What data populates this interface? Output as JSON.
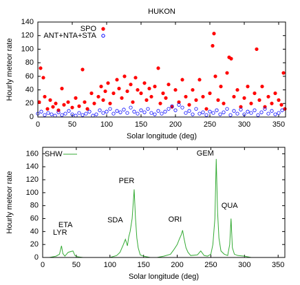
{
  "chart_data": [
    {
      "type": "scatter",
      "title": "HUKON",
      "x_label": "Solar longitude (deg)",
      "y_label": "Hourly meteor rate",
      "xlim": [
        0,
        360
      ],
      "ylim": [
        0,
        140
      ],
      "xticks": [
        0,
        50,
        100,
        150,
        200,
        250,
        300,
        350
      ],
      "yticks": [
        0,
        20,
        40,
        60,
        80,
        100,
        120,
        140
      ],
      "series": [
        {
          "name": "SPO",
          "color": "#ff0000",
          "marker": "filled",
          "x": [
            2,
            4,
            8,
            10,
            14,
            18,
            22,
            26,
            30,
            35,
            38,
            44,
            50,
            55,
            60,
            65,
            68,
            72,
            78,
            82,
            88,
            92,
            95,
            98,
            102,
            105,
            110,
            115,
            118,
            122,
            126,
            130,
            135,
            138,
            142,
            145,
            150,
            155,
            158,
            162,
            165,
            170,
            175,
            178,
            182,
            186,
            190,
            195,
            200,
            205,
            210,
            215,
            220,
            225,
            230,
            235,
            240,
            245,
            250,
            254,
            256,
            258,
            262,
            266,
            270,
            275,
            278,
            281,
            285,
            290,
            295,
            300,
            305,
            310,
            315,
            318,
            322,
            326,
            330,
            335,
            340,
            345,
            350,
            354,
            357,
            359
          ],
          "values": [
            22,
            72,
            58,
            30,
            12,
            25,
            15,
            20,
            10,
            42,
            18,
            22,
            14,
            28,
            16,
            70,
            22,
            12,
            35,
            20,
            30,
            45,
            25,
            38,
            50,
            20,
            35,
            55,
            42,
            28,
            60,
            38,
            48,
            22,
            58,
            40,
            35,
            50,
            25,
            42,
            30,
            45,
            72,
            20,
            35,
            28,
            48,
            15,
            40,
            22,
            55,
            30,
            18,
            40,
            25,
            55,
            30,
            12,
            35,
            105,
            123,
            60,
            25,
            45,
            20,
            65,
            88,
            86,
            30,
            40,
            15,
            28,
            45,
            20,
            35,
            100,
            25,
            45,
            15,
            30,
            20,
            35,
            25,
            18,
            65,
            12
          ]
        },
        {
          "name": "ANT+NTA+STA",
          "color": "#0000ff",
          "marker": "open",
          "x": [
            0,
            5,
            10,
            15,
            20,
            25,
            30,
            35,
            40,
            45,
            50,
            55,
            60,
            65,
            70,
            75,
            80,
            85,
            90,
            95,
            100,
            105,
            110,
            115,
            120,
            125,
            130,
            135,
            140,
            145,
            150,
            155,
            160,
            165,
            170,
            175,
            180,
            185,
            190,
            195,
            200,
            205,
            210,
            215,
            220,
            225,
            230,
            235,
            240,
            245,
            250,
            255,
            260,
            265,
            270,
            275,
            280,
            285,
            290,
            295,
            300,
            305,
            310,
            315,
            320,
            325,
            330,
            335,
            340,
            345,
            350,
            355
          ],
          "values": [
            5,
            8,
            3,
            6,
            4,
            2,
            7,
            3,
            5,
            9,
            4,
            2,
            6,
            3,
            5,
            8,
            2,
            4,
            10,
            6,
            8,
            12,
            5,
            9,
            7,
            11,
            6,
            14,
            8,
            5,
            10,
            7,
            12,
            6,
            4,
            9,
            5,
            8,
            12,
            16,
            10,
            18,
            14,
            6,
            9,
            4,
            12,
            5,
            7,
            3,
            8,
            6,
            10,
            4,
            7,
            12,
            3,
            9,
            5,
            11,
            4,
            8,
            6,
            10,
            3,
            7,
            12,
            5,
            9,
            4,
            6,
            10
          ]
        }
      ]
    },
    {
      "type": "line",
      "x_label": "Solar longitude (deg)",
      "y_label": "Hourly meteor rate",
      "xlim": [
        0,
        360
      ],
      "ylim": [
        0,
        170
      ],
      "xticks": [
        0,
        50,
        100,
        150,
        200,
        250,
        300,
        350
      ],
      "yticks": [
        0,
        20,
        40,
        60,
        80,
        100,
        120,
        140,
        160
      ],
      "annotations": [
        "LYR",
        "ETA",
        "SDA",
        "PER",
        "ORI",
        "GEM",
        "QUA"
      ],
      "series": [
        {
          "name": "SHW",
          "color": "#33aa33",
          "x": [
            0,
            10,
            20,
            25,
            28,
            30,
            33,
            38,
            45,
            48,
            52,
            60,
            70,
            80,
            90,
            100,
            110,
            115,
            120,
            123,
            126,
            128,
            130,
            133,
            136,
            138,
            140,
            142,
            145,
            150,
            160,
            170,
            180,
            190,
            195,
            200,
            203,
            206,
            208,
            210,
            213,
            216,
            220,
            230,
            235,
            240,
            245,
            250,
            253,
            256,
            258,
            260,
            262,
            265,
            270,
            275,
            278,
            280,
            282,
            285,
            290,
            300,
            310
          ],
          "values": [
            0,
            0,
            2,
            5,
            18,
            6,
            2,
            8,
            10,
            3,
            1,
            0,
            0,
            0,
            0,
            0,
            3,
            8,
            20,
            28,
            18,
            32,
            40,
            60,
            105,
            60,
            30,
            15,
            4,
            2,
            0,
            0,
            2,
            5,
            12,
            20,
            28,
            35,
            42,
            30,
            15,
            8,
            3,
            4,
            10,
            3,
            2,
            5,
            20,
            60,
            152,
            70,
            30,
            10,
            5,
            3,
            20,
            60,
            15,
            5,
            3,
            2,
            0
          ]
        }
      ]
    }
  ]
}
